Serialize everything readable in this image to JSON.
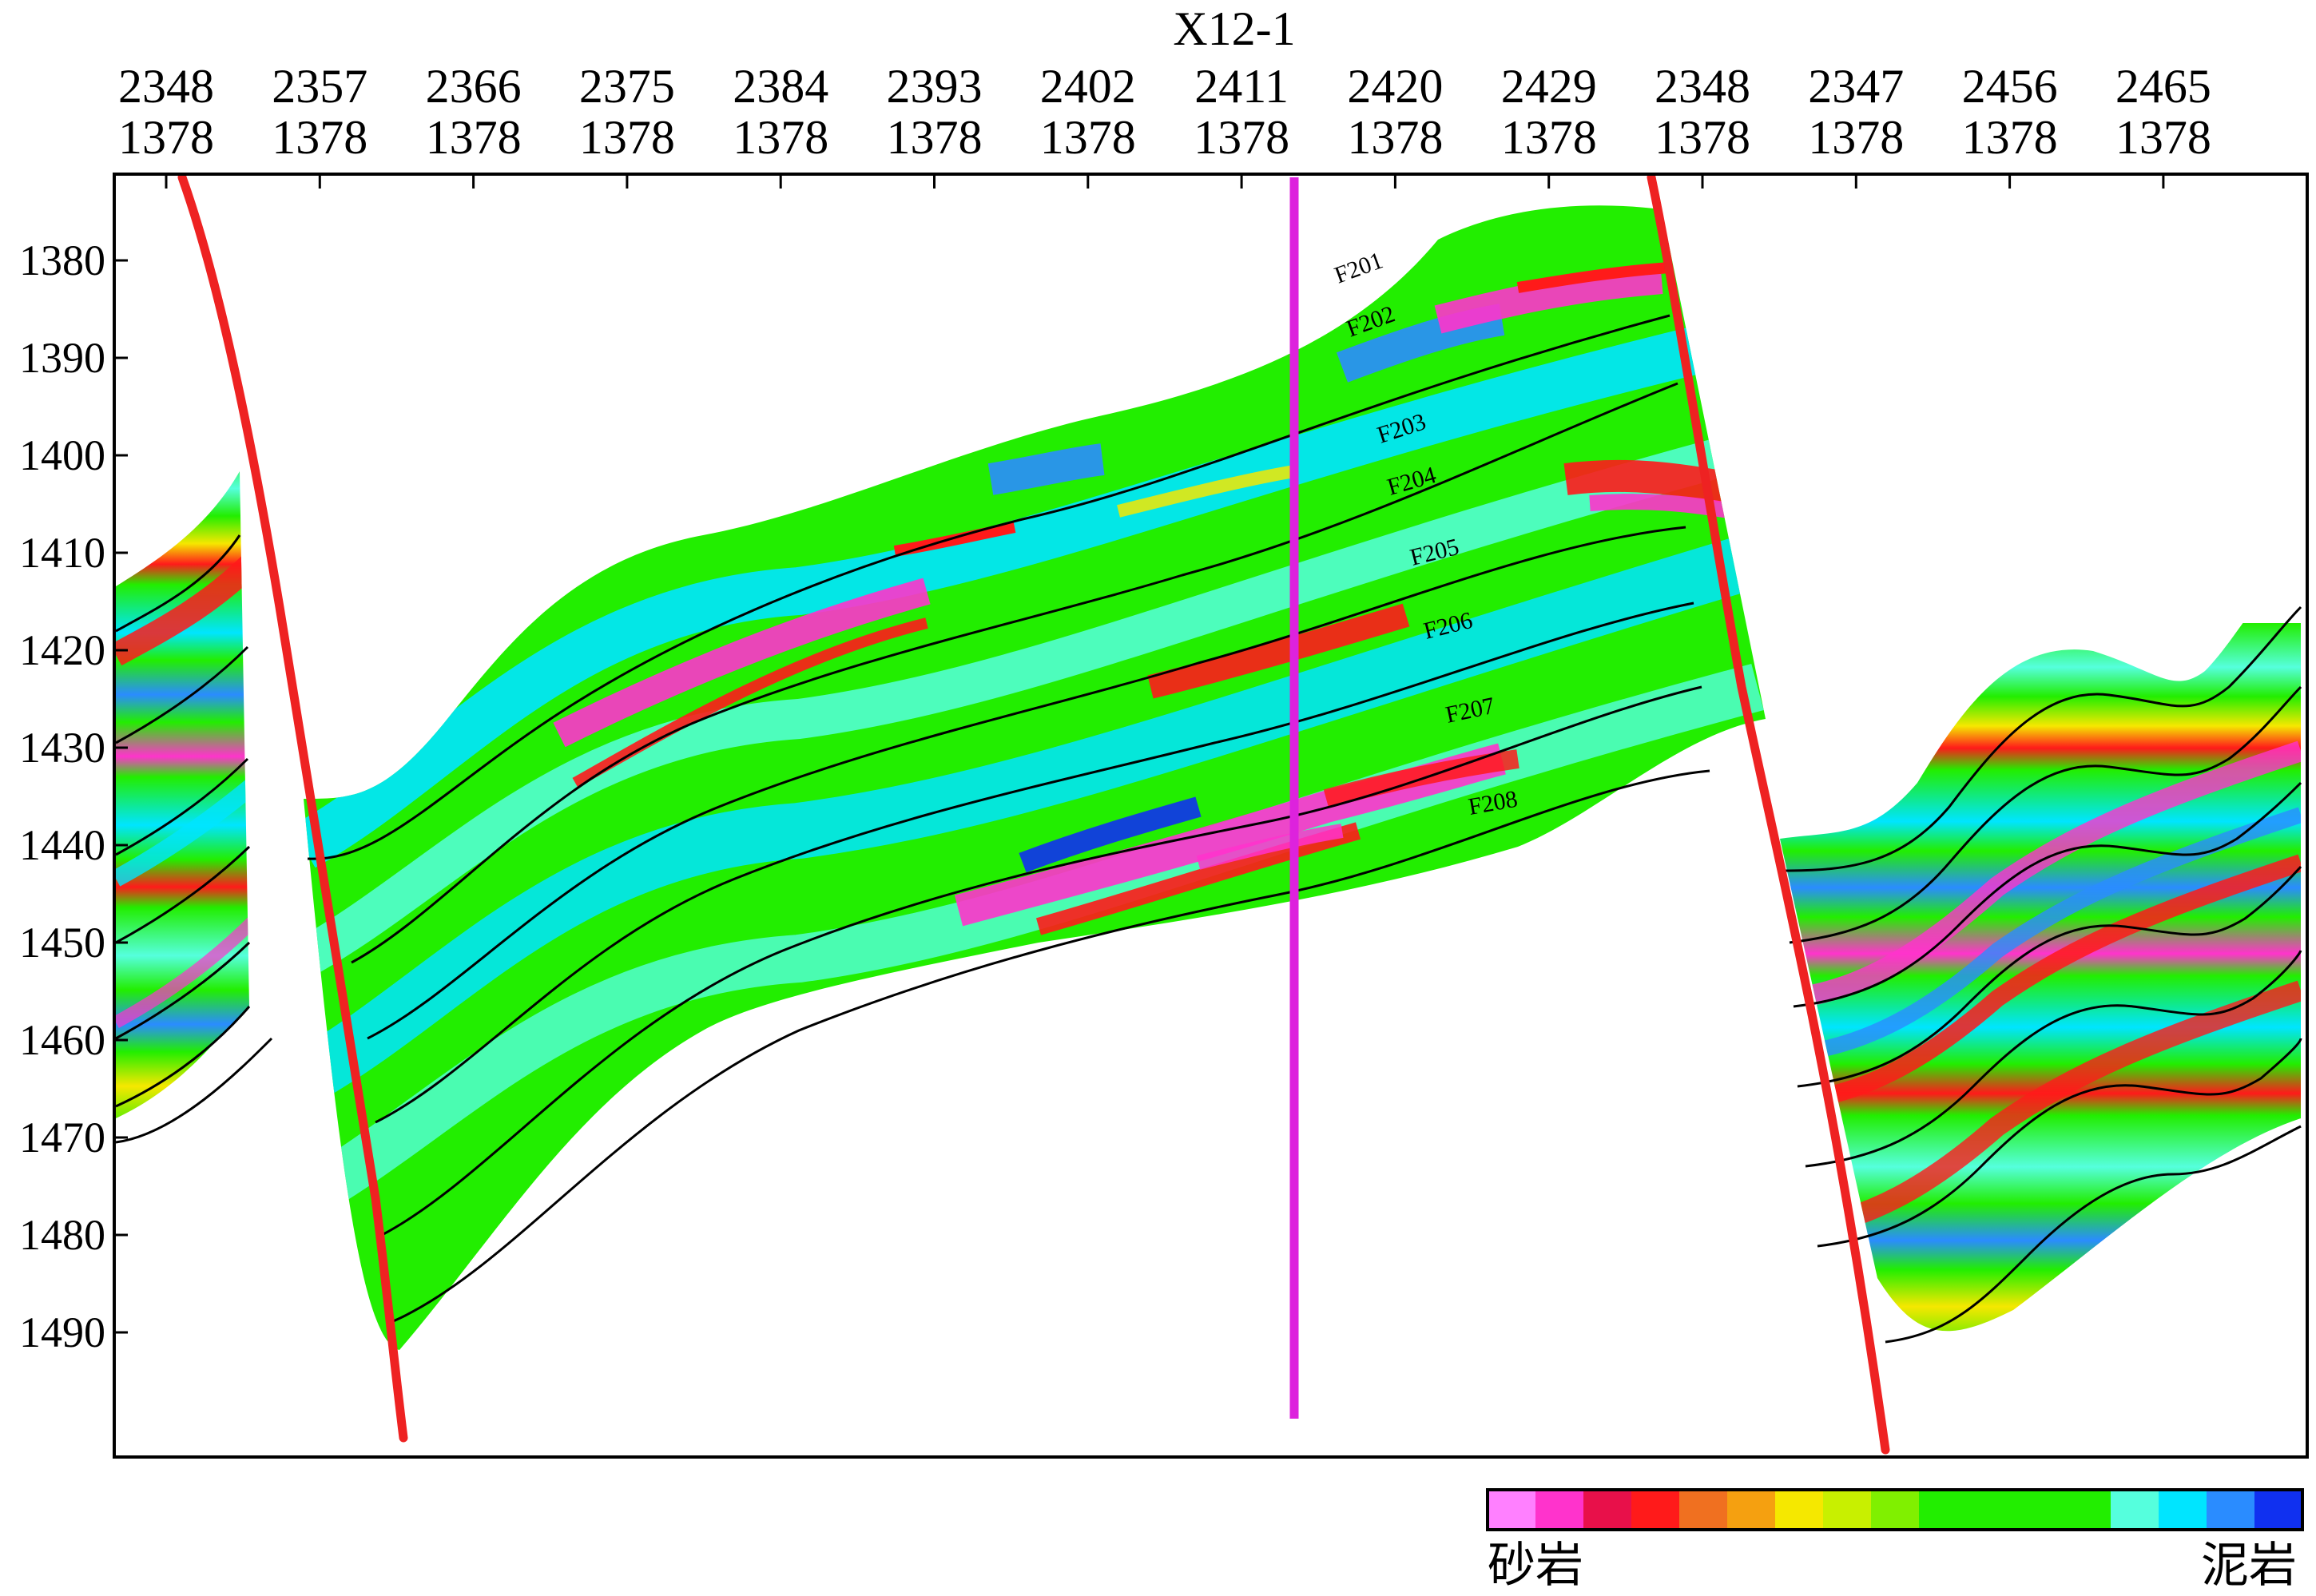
{
  "well_name": "X12-1",
  "traces": [
    {
      "top": "2348",
      "bottom": "1378"
    },
    {
      "top": "2357",
      "bottom": "1378"
    },
    {
      "top": "2366",
      "bottom": "1378"
    },
    {
      "top": "2375",
      "bottom": "1378"
    },
    {
      "top": "2384",
      "bottom": "1378"
    },
    {
      "top": "2393",
      "bottom": "1378"
    },
    {
      "top": "2402",
      "bottom": "1378"
    },
    {
      "top": "2411",
      "bottom": "1378"
    },
    {
      "top": "2420",
      "bottom": "1378"
    },
    {
      "top": "2429",
      "bottom": "1378"
    },
    {
      "top": "2348",
      "bottom": "1378"
    },
    {
      "top": "2347",
      "bottom": "1378"
    },
    {
      "top": "2456",
      "bottom": "1378"
    },
    {
      "top": "2465",
      "bottom": "1378"
    }
  ],
  "depth_ticks": [
    "1380",
    "1390",
    "1400",
    "1410",
    "1420",
    "1430",
    "1440",
    "1450",
    "1460",
    "1470",
    "1480",
    "1490"
  ],
  "horizon_labels": [
    "F201",
    "F202",
    "F203",
    "F204",
    "F205",
    "F206",
    "F207",
    "F208"
  ],
  "legend": {
    "left_label": "砂岩",
    "right_label": "泥岩",
    "colors": [
      "#ff80ff",
      "#ff33cc",
      "#e8104a",
      "#ff1a1a",
      "#f07020",
      "#f5a010",
      "#f5e800",
      "#c8f000",
      "#80f000",
      "#22ee00",
      "#22ee00",
      "#22ee00",
      "#22ee00",
      "#55ffdd",
      "#00e5ff",
      "#2a8cff",
      "#1030f0"
    ]
  },
  "colors": {
    "fault": "#ee2222",
    "well": "#dd22dd",
    "horizon": "#000000"
  }
}
